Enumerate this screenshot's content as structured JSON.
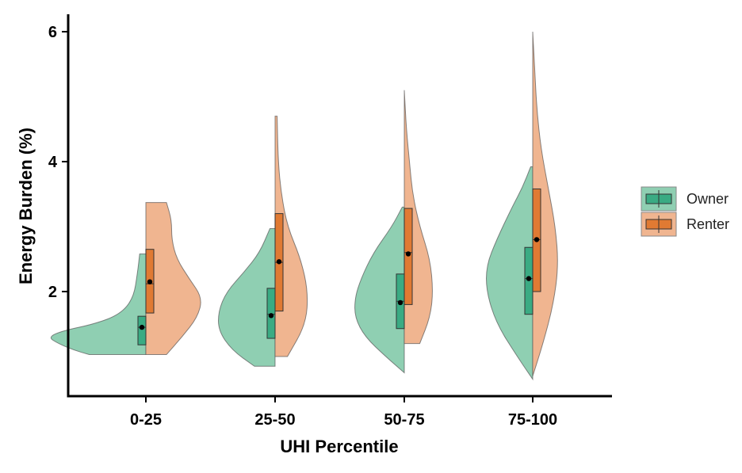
{
  "chart_data": {
    "type": "violin",
    "xlabel": "UHI Percentile",
    "ylabel": "Energy Burden (%)",
    "categories": [
      "0-25",
      "25-50",
      "50-75",
      "75-100"
    ],
    "y_ticks": [
      2,
      4,
      6
    ],
    "ylim": [
      0.3,
      6.3
    ],
    "grid": false,
    "legend_position": "right",
    "series": [
      {
        "name": "Owner",
        "color": "#3aab83",
        "fill_color": "#8fcfb2",
        "side": "left",
        "box": [
          {
            "q1": 1.18,
            "median": 1.45,
            "q3": 1.62,
            "mean": 1.45
          },
          {
            "q1": 1.28,
            "median": 1.65,
            "q3": 2.05,
            "mean": 1.63
          },
          {
            "q1": 1.43,
            "median": 1.85,
            "q3": 2.27,
            "mean": 1.83
          },
          {
            "q1": 1.65,
            "median": 2.2,
            "q3": 2.68,
            "mean": 2.2
          }
        ],
        "violin": [
          {
            "min": 1.03,
            "max": 2.58,
            "density": [
              [
                1.03,
                0.55
              ],
              [
                1.1,
                0.7
              ],
              [
                1.2,
                0.85
              ],
              [
                1.3,
                0.95
              ],
              [
                1.4,
                0.8
              ],
              [
                1.5,
                0.5
              ],
              [
                1.65,
                0.25
              ],
              [
                1.9,
                0.12
              ],
              [
                2.3,
                0.08
              ],
              [
                2.58,
                0.06
              ]
            ]
          },
          {
            "min": 0.85,
            "max": 2.97,
            "density": [
              [
                0.85,
                0.2
              ],
              [
                1.1,
                0.42
              ],
              [
                1.4,
                0.55
              ],
              [
                1.7,
                0.55
              ],
              [
                2.0,
                0.47
              ],
              [
                2.3,
                0.3
              ],
              [
                2.6,
                0.15
              ],
              [
                2.97,
                0.05
              ]
            ]
          },
          {
            "min": 0.75,
            "max": 3.3,
            "density": [
              [
                0.75,
                0.0
              ],
              [
                1.0,
                0.18
              ],
              [
                1.3,
                0.38
              ],
              [
                1.6,
                0.48
              ],
              [
                1.9,
                0.48
              ],
              [
                2.2,
                0.42
              ],
              [
                2.6,
                0.3
              ],
              [
                3.0,
                0.12
              ],
              [
                3.3,
                0.02
              ]
            ]
          },
          {
            "min": 0.65,
            "max": 3.92,
            "density": [
              [
                0.65,
                0.0
              ],
              [
                1.0,
                0.15
              ],
              [
                1.5,
                0.35
              ],
              [
                2.0,
                0.45
              ],
              [
                2.4,
                0.45
              ],
              [
                2.8,
                0.35
              ],
              [
                3.3,
                0.2
              ],
              [
                3.6,
                0.1
              ],
              [
                3.92,
                0.02
              ]
            ]
          }
        ]
      },
      {
        "name": "Renter",
        "color": "#e07a33",
        "fill_color": "#f0b590",
        "side": "right",
        "box": [
          {
            "q1": 1.67,
            "median": 2.12,
            "q3": 2.65,
            "mean": 2.15
          },
          {
            "q1": 1.7,
            "median": 2.45,
            "q3": 3.2,
            "mean": 2.46
          },
          {
            "q1": 1.8,
            "median": 2.6,
            "q3": 3.28,
            "mean": 2.58
          },
          {
            "q1": 2.0,
            "median": 2.8,
            "q3": 3.58,
            "mean": 2.8
          }
        ],
        "violin": [
          {
            "min": 1.03,
            "max": 3.37,
            "density": [
              [
                1.03,
                0.2
              ],
              [
                1.3,
                0.35
              ],
              [
                1.6,
                0.5
              ],
              [
                1.9,
                0.55
              ],
              [
                2.2,
                0.42
              ],
              [
                2.5,
                0.3
              ],
              [
                2.8,
                0.25
              ],
              [
                3.1,
                0.25
              ],
              [
                3.37,
                0.2
              ]
            ]
          },
          {
            "min": 1.0,
            "max": 4.7,
            "density": [
              [
                1.0,
                0.12
              ],
              [
                1.5,
                0.3
              ],
              [
                2.0,
                0.32
              ],
              [
                2.5,
                0.25
              ],
              [
                3.0,
                0.12
              ],
              [
                3.5,
                0.06
              ],
              [
                4.0,
                0.03
              ],
              [
                4.7,
                0.02
              ]
            ]
          },
          {
            "min": 1.2,
            "max": 5.1,
            "density": [
              [
                1.2,
                0.15
              ],
              [
                1.6,
                0.25
              ],
              [
                2.0,
                0.28
              ],
              [
                2.5,
                0.25
              ],
              [
                3.0,
                0.15
              ],
              [
                3.5,
                0.08
              ],
              [
                4.0,
                0.05
              ],
              [
                4.5,
                0.02
              ],
              [
                5.1,
                0.0
              ]
            ]
          },
          {
            "min": 0.7,
            "max": 6.0,
            "density": [
              [
                0.7,
                0.0
              ],
              [
                1.2,
                0.1
              ],
              [
                1.8,
                0.2
              ],
              [
                2.4,
                0.25
              ],
              [
                3.0,
                0.22
              ],
              [
                3.6,
                0.15
              ],
              [
                4.2,
                0.08
              ],
              [
                4.8,
                0.04
              ],
              [
                5.4,
                0.02
              ],
              [
                6.0,
                0.0
              ]
            ]
          }
        ]
      }
    ]
  }
}
